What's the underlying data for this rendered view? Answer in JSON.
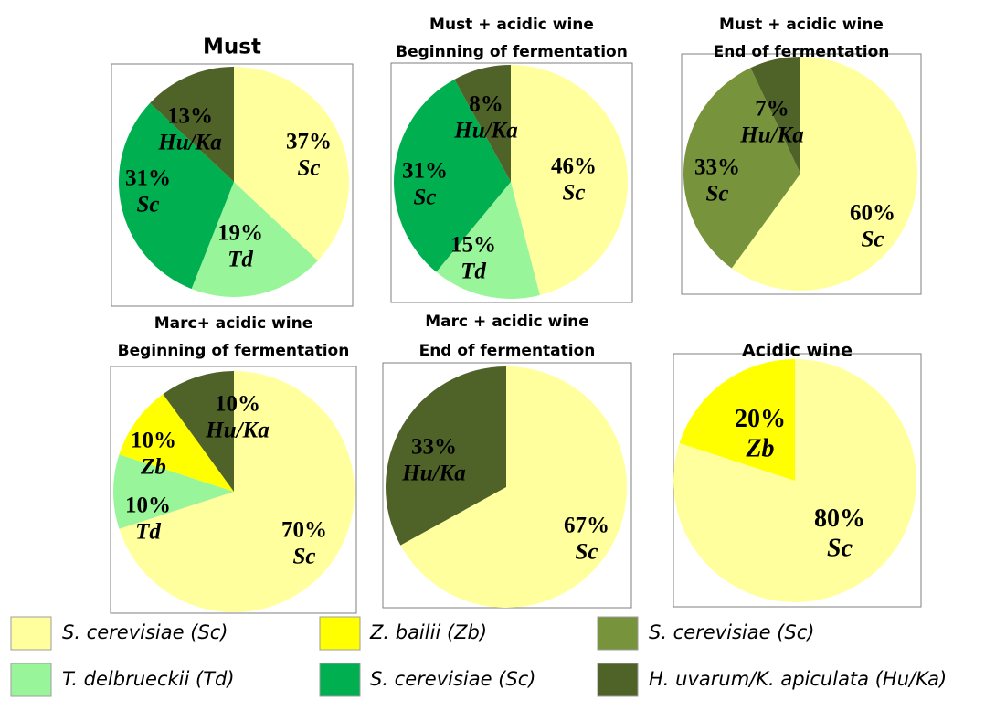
{
  "colors": {
    "sc_pale": "#ffff9d",
    "zb": "#ffff00",
    "sc_olive": "#77933c",
    "td": "#99f599",
    "sc_green": "#00b050",
    "huka": "#4f6228"
  },
  "legend": [
    {
      "label": "S. cerevisiae (Sc)",
      "color_key": "sc_pale"
    },
    {
      "label": "Z. bailii (Zb)",
      "color_key": "zb"
    },
    {
      "label": "S. cerevisiae (Sc)",
      "color_key": "sc_olive"
    },
    {
      "label": "T. delbrueckii (Td)",
      "color_key": "td"
    },
    {
      "label": "S. cerevisiae (Sc)",
      "color_key": "sc_green"
    },
    {
      "label": "H. uvarum/K. apiculata (Hu/Ka)",
      "color_key": "huka"
    }
  ],
  "chart_data": [
    {
      "type": "pie",
      "title": [
        "Must"
      ],
      "slices": [
        {
          "value": 37,
          "label": "37%",
          "abbr": "Sc",
          "color_key": "sc_pale"
        },
        {
          "value": 19,
          "label": "19%",
          "abbr": "Td",
          "color_key": "td"
        },
        {
          "value": 31,
          "label": "31%",
          "abbr": "Sc",
          "color_key": "sc_green"
        },
        {
          "value": 13,
          "label": "13%",
          "abbr": "Hu/Ka",
          "color_key": "huka"
        }
      ]
    },
    {
      "type": "pie",
      "title": [
        "Must + acidic wine",
        "Beginning of fermentation"
      ],
      "slices": [
        {
          "value": 46,
          "label": "46%",
          "abbr": "Sc",
          "color_key": "sc_pale"
        },
        {
          "value": 15,
          "label": "15%",
          "abbr": "Td",
          "color_key": "td"
        },
        {
          "value": 31,
          "label": "31%",
          "abbr": "Sc",
          "color_key": "sc_green"
        },
        {
          "value": 8,
          "label": "8%",
          "abbr": "Hu/Ka",
          "color_key": "huka"
        }
      ]
    },
    {
      "type": "pie",
      "title": [
        "Must + acidic wine",
        "End of fermentation"
      ],
      "slices": [
        {
          "value": 60,
          "label": "60%",
          "abbr": "Sc",
          "color_key": "sc_pale"
        },
        {
          "value": 33,
          "label": "33%",
          "abbr": "Sc",
          "color_key": "sc_olive"
        },
        {
          "value": 7,
          "label": "7%",
          "abbr": "Hu/Ka",
          "color_key": "huka"
        }
      ]
    },
    {
      "type": "pie",
      "title": [
        "Marc+ acidic wine",
        "Beginning of fermentation"
      ],
      "slices": [
        {
          "value": 70,
          "label": "70%",
          "abbr": "Sc",
          "color_key": "sc_pale"
        },
        {
          "value": 10,
          "label": "10%",
          "abbr": "Td",
          "color_key": "td"
        },
        {
          "value": 10,
          "label": "10%",
          "abbr": "Zb",
          "color_key": "zb"
        },
        {
          "value": 10,
          "label": "10%",
          "abbr": "Hu/Ka",
          "color_key": "huka"
        }
      ]
    },
    {
      "type": "pie",
      "title": [
        "Marc + acidic wine",
        "End of fermentation"
      ],
      "slices": [
        {
          "value": 67,
          "label": "67%",
          "abbr": "Sc",
          "color_key": "sc_pale"
        },
        {
          "value": 33,
          "label": "33%",
          "abbr": "Hu/Ka",
          "color_key": "huka"
        }
      ]
    },
    {
      "type": "pie",
      "title": [
        "Acidic wine"
      ],
      "slices": [
        {
          "value": 80,
          "label": "80%",
          "abbr": "Sc",
          "color_key": "sc_pale"
        },
        {
          "value": 20,
          "label": "20%",
          "abbr": "Zb",
          "color_key": "zb"
        }
      ]
    }
  ]
}
